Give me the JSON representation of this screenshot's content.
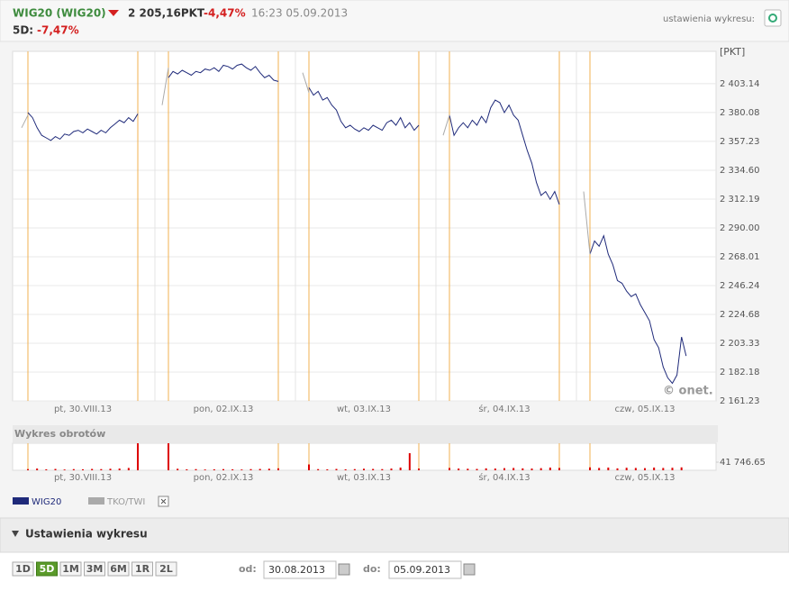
{
  "header": {
    "symbol": "WIG20 (WIG20)",
    "price": "2 205,16PKT",
    "change": "-4,47%",
    "time": "16:23 05.09.2013",
    "settings_label": "ustawienia wykresu:",
    "period_label": "5D:",
    "period_change": "-7,47%"
  },
  "chart_data": [
    {
      "type": "line",
      "log": true,
      "grid": true,
      "y_label": "[PKT]",
      "watermark": "© onet.",
      "categories": [
        "pt, 30.VIII.13",
        "pon, 02.IX.13",
        "wt, 03.IX.13",
        "śr, 04.IX.13",
        "czw, 05.IX.13"
      ],
      "ylim": [
        2161.23,
        2429.3
      ],
      "yticks": [
        {
          "value": 2161.23,
          "label": "2 161.23"
        },
        {
          "value": 2182.18,
          "label": "2 182.18"
        },
        {
          "value": 2203.33,
          "label": "2 203.33"
        },
        {
          "value": 2224.68,
          "label": "2 224.68"
        },
        {
          "value": 2246.24,
          "label": "2 246.24"
        },
        {
          "value": 2268.01,
          "label": "2 268.01"
        },
        {
          "value": 2290.0,
          "label": "2 290.00"
        },
        {
          "value": 2312.19,
          "label": "2 312.19"
        },
        {
          "value": 2334.6,
          "label": "2 334.60"
        },
        {
          "value": 2357.23,
          "label": "2 357.23"
        },
        {
          "value": 2380.08,
          "label": "2 380.08"
        },
        {
          "value": 2403.14,
          "label": "2 403.14"
        }
      ],
      "series": [
        {
          "name": "WIG20",
          "color": "#1f2a7a",
          "values": [
            [
              2380,
              2376,
              2368,
              2362,
              2360,
              2358,
              2361,
              2359,
              2363,
              2362,
              2365,
              2366,
              2364,
              2367,
              2365,
              2363,
              2366,
              2364,
              2368,
              2371,
              2374,
              2372,
              2376,
              2373,
              2379
            ],
            [
              2408,
              2413,
              2411,
              2414,
              2412,
              2410,
              2413,
              2412,
              2415,
              2414,
              2416,
              2413,
              2418,
              2417,
              2415,
              2418,
              2419,
              2416,
              2414,
              2417,
              2412,
              2408,
              2410,
              2406,
              2405
            ],
            [
              2400,
              2394,
              2397,
              2390,
              2392,
              2386,
              2382,
              2373,
              2368,
              2370,
              2367,
              2365,
              2368,
              2366,
              2370,
              2368,
              2366,
              2372,
              2374,
              2370,
              2376,
              2368,
              2372,
              2366,
              2370
            ],
            [
              2378,
              2362,
              2368,
              2372,
              2368,
              2374,
              2370,
              2377,
              2372,
              2384,
              2390,
              2388,
              2380,
              2386,
              2378,
              2374,
              2362,
              2350,
              2340,
              2325,
              2315,
              2318,
              2312,
              2318,
              2308
            ],
            [
              2270,
              2280,
              2276,
              2284,
              2270,
              2262,
              2250,
              2248,
              2242,
              2238,
              2240,
              2232,
              2226,
              2220,
              2206,
              2200,
              2186,
              2178,
              2174,
              2180,
              2208,
              2194
            ]
          ]
        },
        {
          "name": "TKO/TWI",
          "color": "#aaaaaa",
          "values": [
            [
              2368,
              2378
            ],
            [
              2386,
              2416
            ],
            [
              2412,
              2396
            ],
            [
              2362,
              2378
            ],
            [
              2318,
              2270
            ]
          ]
        }
      ]
    },
    {
      "type": "bar",
      "title": "Wykres obrotów",
      "color": "#dd0000",
      "categories": [
        "pt, 30.VIII.13",
        "pon, 02.IX.13",
        "wt, 03.IX.13",
        "śr, 04.IX.13",
        "czw, 05.IX.13"
      ],
      "ylim": [
        0,
        139155
      ],
      "yticks": [
        {
          "value": 41746.65,
          "label": "41 746.65"
        }
      ],
      "values": [
        [
          6000,
          9000,
          5000,
          7000,
          4000,
          6000,
          5000,
          7000,
          6000,
          8000,
          9000,
          12000,
          139000
        ],
        [
          139000,
          8000,
          5000,
          6000,
          4000,
          5000,
          6000,
          5000,
          4000,
          6000,
          7000,
          8000,
          10000
        ],
        [
          30000,
          6000,
          5000,
          7000,
          5000,
          6000,
          8000,
          7000,
          6000,
          9000,
          14000,
          88000,
          9000
        ],
        [
          12000,
          9000,
          8000,
          7000,
          10000,
          9000,
          11000,
          12000,
          10000,
          9000,
          11000,
          14000,
          12000
        ],
        [
          15000,
          12000,
          14000,
          10000,
          13000,
          12000,
          11000,
          14000,
          12000,
          13000,
          15000
        ]
      ]
    }
  ],
  "controls": {
    "title": "Ustawienia wykresu",
    "ranges": [
      "1D",
      "5D",
      "1M",
      "3M",
      "6M",
      "1R",
      "2L"
    ],
    "active_range": "5D",
    "from_label": "od:",
    "from": "30.08.2013",
    "to_label": "do:",
    "to": "05.09.2013"
  }
}
